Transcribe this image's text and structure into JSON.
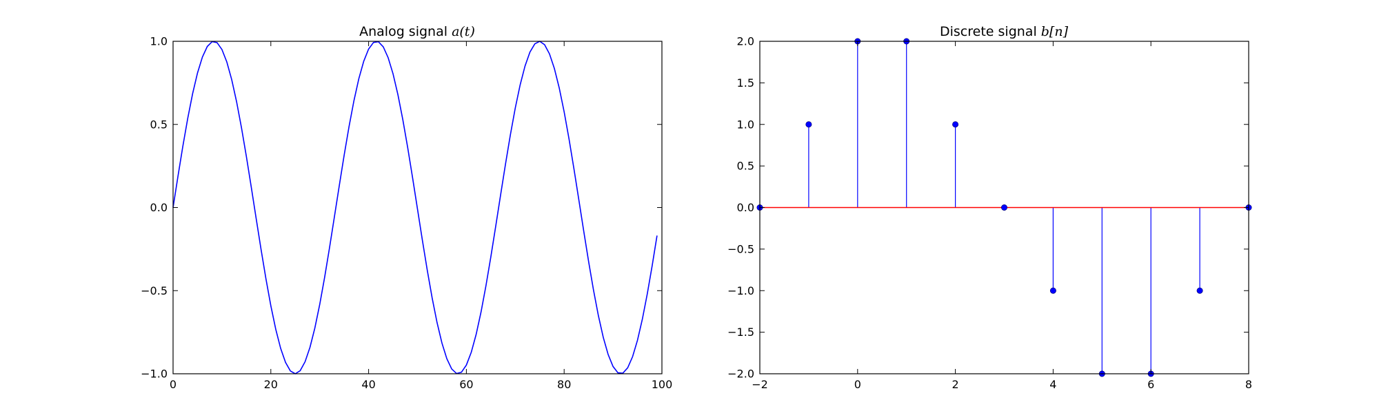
{
  "chart_data": [
    {
      "type": "line",
      "title": "Analog signal",
      "title_math": "a(t)",
      "xlabel": "",
      "ylabel": "",
      "xlim": [
        0,
        100
      ],
      "ylim": [
        -1.0,
        1.0
      ],
      "xticks": [
        "0",
        "20",
        "40",
        "60",
        "80",
        "100"
      ],
      "yticks": [
        "−1.0",
        "−0.5",
        "0.0",
        "0.5",
        "1.0"
      ],
      "grid": false,
      "series": [
        {
          "color": "#0000ff",
          "function": "sin(2*pi*t/33.3)",
          "t_start": 0,
          "t_end": 99,
          "t_step": 1,
          "x": [
            0,
            4,
            8,
            12,
            17,
            21,
            25,
            29,
            33,
            37,
            42,
            46,
            50,
            54,
            58,
            62,
            67,
            71,
            75,
            79,
            83,
            87,
            92,
            96,
            99
          ],
          "values": [
            0.0,
            0.69,
            0.99,
            0.77,
            -0.13,
            -0.84,
            -1.0,
            -0.72,
            0.0,
            0.71,
            1.0,
            0.72,
            -0.1,
            -0.8,
            -1.0,
            -0.74,
            0.12,
            0.83,
            1.0,
            0.72,
            -0.02,
            -0.75,
            -0.98,
            -0.66,
            -0.19
          ]
        }
      ]
    },
    {
      "type": "stem",
      "title": "Discrete signal",
      "title_math": "b[n]",
      "xlabel": "",
      "ylabel": "",
      "xlim": [
        -2,
        8
      ],
      "ylim": [
        -2.0,
        2.0
      ],
      "xticks": [
        "−2",
        "0",
        "2",
        "4",
        "6",
        "8"
      ],
      "yticks": [
        "−2.0",
        "−1.5",
        "−1.0",
        "−0.5",
        "0.0",
        "0.5",
        "1.0",
        "1.5",
        "2.0"
      ],
      "grid": false,
      "stem_color": "#0000ff",
      "baseline_color": "#ff0000",
      "series": [
        {
          "x": [
            -2,
            -1,
            0,
            1,
            2,
            3,
            4,
            5,
            6,
            7,
            8
          ],
          "values": [
            0,
            1,
            2,
            2,
            1,
            0,
            -1,
            -2,
            -2,
            -1,
            0
          ]
        }
      ]
    }
  ]
}
